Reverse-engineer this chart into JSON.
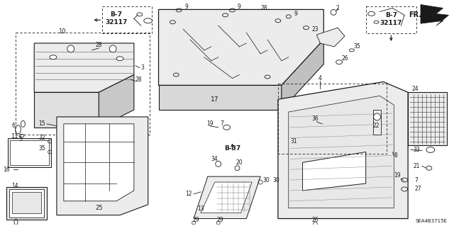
{
  "bg_color": "#ffffff",
  "text_color": "#1a1a1a",
  "figsize": [
    6.4,
    3.19
  ],
  "dpi": 100,
  "diagram_code": "SEA4B3715E",
  "b7_label": "B-7",
  "b7_num": "32117",
  "b37_label": "B-37",
  "fr_label": "FR.",
  "gray_fill": "#d8d8d8",
  "light_fill": "#ececec",
  "white": "#ffffff"
}
